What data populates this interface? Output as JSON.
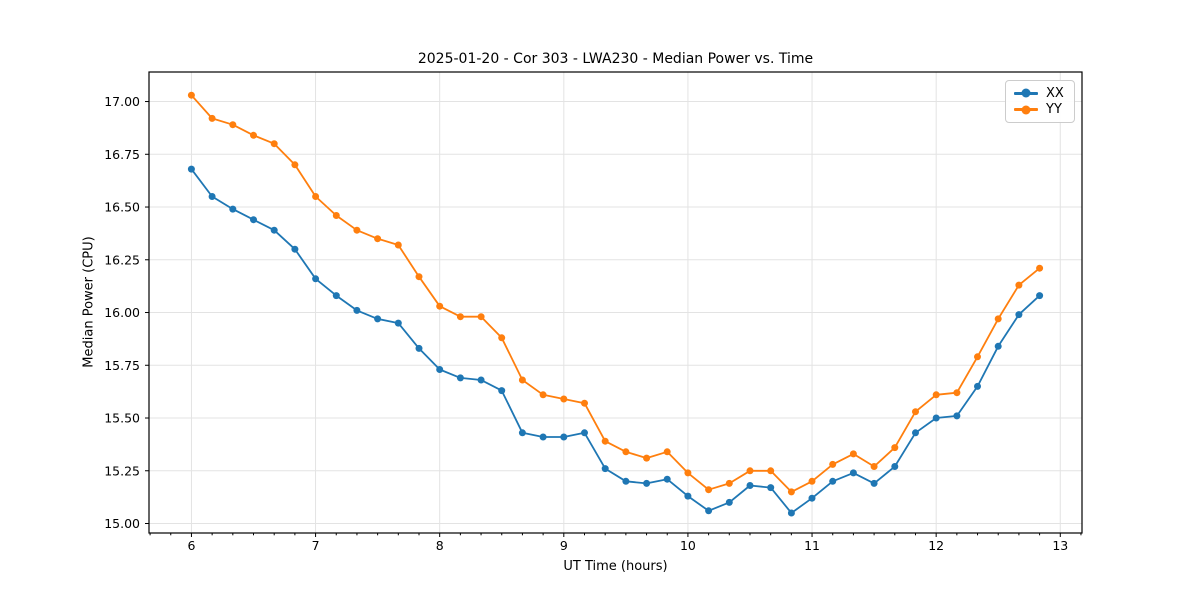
{
  "figure": {
    "background": "#ffffff"
  },
  "chart_data": {
    "type": "line",
    "title": "2025-01-20 - Cor 303 - LWA230 - Median Power vs. Time",
    "xlabel": "UT Time (hours)",
    "ylabel": "Median Power (CPU)",
    "xlim": [
      5.658,
      13.175
    ],
    "ylim": [
      14.955,
      17.14
    ],
    "grid": true,
    "grid_color": "#e3e3e3",
    "frame_color": "#000000",
    "tick_color": "#000000",
    "x_ticks": [
      6,
      7,
      8,
      9,
      10,
      11,
      12,
      13
    ],
    "x_tick_labels": [
      "6",
      "7",
      "8",
      "9",
      "10",
      "11",
      "12",
      "13"
    ],
    "x_minor_step": 0.1666667,
    "y_ticks": [
      15.0,
      15.25,
      15.5,
      15.75,
      16.0,
      16.25,
      16.5,
      16.75,
      17.0
    ],
    "y_tick_labels": [
      "15.00",
      "15.25",
      "15.50",
      "15.75",
      "16.00",
      "16.25",
      "16.50",
      "16.75",
      "17.00"
    ],
    "legend_position": "upper right",
    "marker": "circle",
    "marker_diameter": 7,
    "line_width": 1.8,
    "x": [
      6.0,
      6.1667,
      6.3333,
      6.5,
      6.6667,
      6.8333,
      7.0,
      7.1667,
      7.3333,
      7.5,
      7.6667,
      7.8333,
      8.0,
      8.1667,
      8.3333,
      8.5,
      8.6667,
      8.8333,
      9.0,
      9.1667,
      9.3333,
      9.5,
      9.6667,
      9.8333,
      10.0,
      10.1667,
      10.3333,
      10.5,
      10.6667,
      10.8333,
      11.0,
      11.1667,
      11.3333,
      11.5,
      11.6667,
      11.8333,
      12.0,
      12.1667,
      12.3333,
      12.5,
      12.6667,
      12.8333
    ],
    "series": [
      {
        "name": "XX",
        "color": "#1f77b4",
        "values": [
          16.68,
          16.55,
          16.49,
          16.44,
          16.39,
          16.3,
          16.16,
          16.08,
          16.01,
          15.97,
          15.95,
          15.83,
          15.73,
          15.69,
          15.68,
          15.63,
          15.43,
          15.41,
          15.41,
          15.43,
          15.26,
          15.2,
          15.19,
          15.21,
          15.13,
          15.06,
          15.1,
          15.18,
          15.17,
          15.05,
          15.12,
          15.2,
          15.24,
          15.19,
          15.27,
          15.43,
          15.5,
          15.51,
          15.65,
          15.84,
          15.99,
          16.08
        ]
      },
      {
        "name": "YY",
        "color": "#ff7f0e",
        "values": [
          17.03,
          16.92,
          16.89,
          16.84,
          16.8,
          16.7,
          16.55,
          16.46,
          16.39,
          16.35,
          16.32,
          16.17,
          16.03,
          15.98,
          15.98,
          15.88,
          15.68,
          15.61,
          15.59,
          15.57,
          15.39,
          15.34,
          15.31,
          15.34,
          15.24,
          15.16,
          15.19,
          15.25,
          15.25,
          15.15,
          15.2,
          15.28,
          15.33,
          15.27,
          15.36,
          15.53,
          15.61,
          15.62,
          15.79,
          15.97,
          16.13,
          16.21
        ]
      }
    ]
  }
}
